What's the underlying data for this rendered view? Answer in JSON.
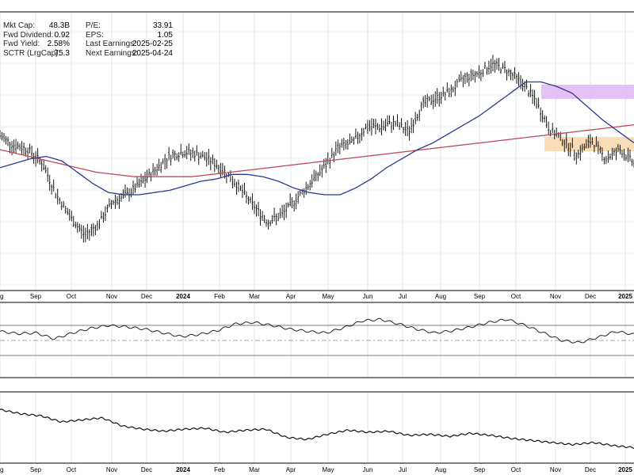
{
  "stats": {
    "left": [
      {
        "label": "Mkt Cap:",
        "value": "48.3B"
      },
      {
        "label": "Fwd Dividend:",
        "value": "0.92"
      },
      {
        "label": "Fwd Yield:",
        "value": "2.58%"
      },
      {
        "label": "SCTR (LrgCap):",
        "value": "75.3"
      }
    ],
    "right": [
      {
        "label": "P/E:",
        "value": "33.91"
      },
      {
        "label": "EPS:",
        "value": "1.05"
      },
      {
        "label": "Last Earnings:",
        "value": "2025-02-25"
      },
      {
        "label": "Next Earnings:",
        "value": "2025-04-24"
      }
    ]
  },
  "colors": {
    "price": "#000000",
    "ma_short": "#2b3a8f",
    "ma_long": "#c0475a",
    "zone_upper": "#e2b6f4",
    "zone_lower": "#f8d7aa",
    "indicator_up_fill": "#3f8b4a",
    "indicator_down_fill": "#8b3a3a",
    "grid": "#dddddd"
  },
  "chart_data": {
    "type": "line",
    "x_tick_labels": [
      "g",
      "Sep",
      "Oct",
      "Nov",
      "Dec",
      "2024",
      "Feb",
      "Mar",
      "Apr",
      "May",
      "Jun",
      "Jul",
      "Aug",
      "Sep",
      "Oct",
      "Nov",
      "Dec",
      "2025"
    ],
    "price": [
      66,
      62,
      60,
      54,
      40,
      30,
      22,
      27,
      37,
      40,
      45,
      51,
      57,
      59,
      58,
      55,
      50,
      43,
      35,
      28,
      31,
      38,
      45,
      52,
      61,
      63,
      70,
      70,
      72,
      68,
      80,
      83,
      86,
      92,
      94,
      98,
      95,
      90,
      82,
      69,
      64,
      58,
      64,
      56,
      60,
      54
    ],
    "ma_short": [
      52,
      54,
      56,
      57,
      55,
      50,
      45,
      41,
      40,
      40,
      41,
      42,
      44,
      46,
      47,
      49,
      49,
      48,
      46,
      43,
      41,
      40,
      40,
      43,
      47,
      52,
      56,
      60,
      63,
      67,
      71,
      75,
      80,
      85,
      90,
      90,
      88,
      85,
      79,
      73,
      68,
      63
    ],
    "ma_long": [
      60,
      58,
      56,
      54,
      52,
      50,
      49,
      48,
      48,
      48,
      48,
      49,
      50,
      51,
      52,
      53,
      54,
      55,
      56,
      57,
      58,
      59,
      60,
      61,
      62,
      63,
      64,
      65,
      66,
      67,
      68,
      69,
      70,
      71
    ],
    "indicator": [
      52,
      49,
      50,
      42,
      50,
      56,
      60,
      58,
      55,
      50,
      45,
      48,
      53,
      62,
      64,
      60,
      55,
      52,
      50,
      57,
      66,
      68,
      62,
      55,
      50,
      53,
      58,
      64,
      68,
      60,
      50,
      40,
      37,
      44,
      52,
      48
    ],
    "indicator_levels": [
      70,
      30
    ],
    "lower": [
      52,
      48,
      46,
      40,
      42,
      44,
      36,
      33,
      31,
      33,
      34,
      30,
      32,
      33,
      25,
      23,
      28,
      32,
      30,
      31,
      27,
      28,
      26,
      29,
      27,
      24,
      22,
      20,
      18,
      20,
      17,
      15
    ]
  }
}
